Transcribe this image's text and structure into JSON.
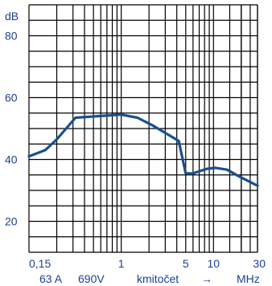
{
  "chart_data": {
    "type": "line",
    "title": "",
    "ylabel": "dB",
    "xlabel": "kmitočet",
    "x_unit": "MHz",
    "x_scale": "log",
    "xlim": [
      0.1,
      30
    ],
    "ylim": [
      10,
      90
    ],
    "grid": true,
    "y_ticks": [
      {
        "value": 80,
        "label": "80"
      },
      {
        "value": 60,
        "label": "60"
      },
      {
        "value": 40,
        "label": "40"
      },
      {
        "value": 20,
        "label": "20"
      }
    ],
    "x_ticks": [
      {
        "value": 0.15,
        "label": "0,15"
      },
      {
        "value": 1,
        "label": "1"
      },
      {
        "value": 5,
        "label": "5"
      },
      {
        "value": 10,
        "label": "10"
      },
      {
        "value": 30,
        "label": "30"
      }
    ],
    "annotations": [
      {
        "text": "63 A"
      },
      {
        "text": "690V"
      },
      {
        "text": "→"
      }
    ],
    "series": [
      {
        "name": "",
        "color": "#1a4f8b",
        "points": [
          {
            "x": 0.1,
            "y": 41
          },
          {
            "x": 0.15,
            "y": 43
          },
          {
            "x": 0.2,
            "y": 46.5
          },
          {
            "x": 0.32,
            "y": 53.5
          },
          {
            "x": 0.55,
            "y": 54
          },
          {
            "x": 1.0,
            "y": 54.5
          },
          {
            "x": 1.5,
            "y": 53.5
          },
          {
            "x": 2.2,
            "y": 51
          },
          {
            "x": 4.2,
            "y": 46
          },
          {
            "x": 5.0,
            "y": 35.5
          },
          {
            "x": 6.0,
            "y": 35.5
          },
          {
            "x": 8.5,
            "y": 37
          },
          {
            "x": 10.5,
            "y": 37.3
          },
          {
            "x": 14.0,
            "y": 36.7
          },
          {
            "x": 19.0,
            "y": 34.5
          },
          {
            "x": 30.0,
            "y": 31.5
          }
        ]
      }
    ]
  }
}
